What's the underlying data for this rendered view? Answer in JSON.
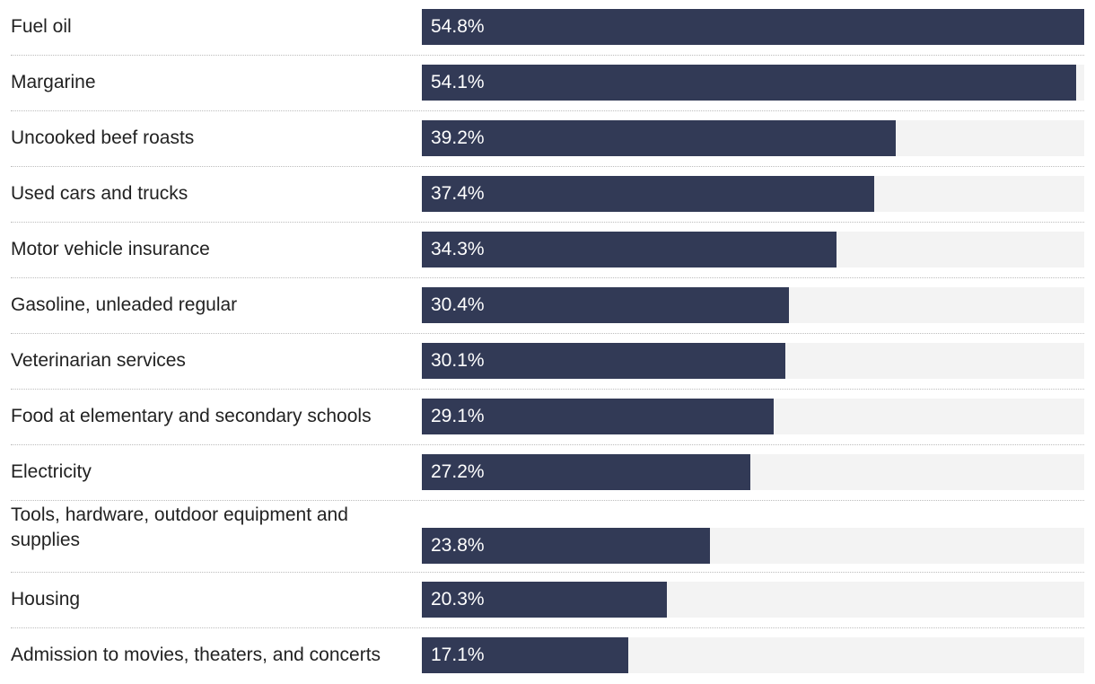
{
  "chart_data": {
    "type": "bar",
    "orientation": "horizontal",
    "title": "",
    "xlabel": "",
    "ylabel": "",
    "xlim": [
      0,
      54.8
    ],
    "unit": "%",
    "categories": [
      "Fuel oil",
      "Margarine",
      "Uncooked beef roasts",
      "Used cars and trucks",
      "Motor vehicle insurance",
      "Gasoline, unleaded regular",
      "Veterinarian services",
      "Food at elementary and secondary schools",
      "Electricity",
      "Tools, hardware, outdoor equipment and supplies",
      "Housing",
      "Admission to movies, theaters, and concerts"
    ],
    "values": [
      54.8,
      54.1,
      39.2,
      37.4,
      34.3,
      30.4,
      30.1,
      29.1,
      27.2,
      23.8,
      20.3,
      17.1
    ],
    "value_labels": [
      "54.8%",
      "54.1%",
      "39.2%",
      "37.4%",
      "34.3%",
      "30.4%",
      "30.1%",
      "29.1%",
      "27.2%",
      "23.8%",
      "20.3%",
      "17.1%"
    ]
  },
  "colors": {
    "bar": "#323a56",
    "track": "#f3f3f3",
    "label_text": "#222222",
    "value_text": "#ffffff",
    "divider": "#bdbdbd"
  }
}
